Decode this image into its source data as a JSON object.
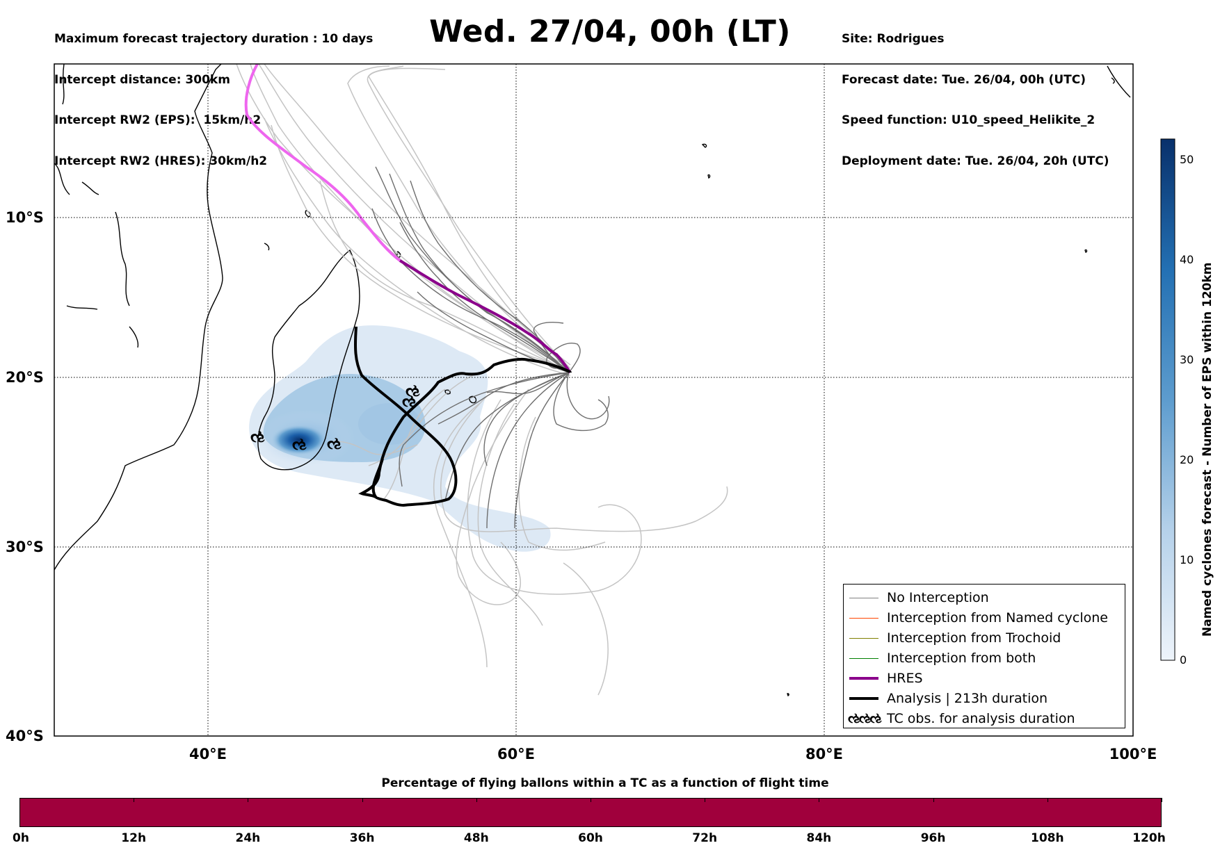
{
  "header_left": [
    "Maximum forecast trajectory duration : 10 days",
    "Intercept distance: 300km",
    "Intercept RW2 (EPS):  15km/h2",
    "Intercept RW2 (HRES): 30km/h2"
  ],
  "title": "Wed. 27/04, 00h (LT)",
  "header_right": [
    "Site: Rodrigues",
    "Forecast date: Tue. 26/04, 00h (UTC)",
    "Speed function: U10_speed_Helikite_2",
    "Deployment date: Tue. 26/04, 20h (UTC)"
  ],
  "map": {
    "lon_range": [
      30,
      100
    ],
    "lat_range": [
      -40,
      0
    ],
    "lon_ticks": [
      {
        "value": 40,
        "label": "40°E"
      },
      {
        "value": 60,
        "label": "60°E"
      },
      {
        "value": 80,
        "label": "80°E"
      },
      {
        "value": 100,
        "label": "100°E"
      }
    ],
    "lat_ticks": [
      {
        "value": -10,
        "label": "10°S"
      },
      {
        "value": -20,
        "label": "20°S"
      },
      {
        "value": -30,
        "label": "30°S"
      },
      {
        "value": -40,
        "label": "40°S"
      }
    ],
    "gridlines": "dotted",
    "hres_track": {
      "color": "#8b008b",
      "early_color": "#ee66ee"
    },
    "analysis_track": {
      "color": "#000000",
      "duration_h": 213
    }
  },
  "colorbar": {
    "title": "Named cyclones forecast - Number of EPS within 120km",
    "range": [
      0,
      52
    ],
    "ticks": [
      "0",
      "10",
      "20",
      "30",
      "40",
      "50"
    ],
    "colors": [
      "#e8f0f8",
      "#08306b"
    ]
  },
  "legend": {
    "items": [
      {
        "label": "No Interception",
        "color": "#808080",
        "width": 1.5
      },
      {
        "label": "Interception from Named cyclone",
        "color": "#ff4500",
        "width": 1.5
      },
      {
        "label": "Interception from Trochoid",
        "color": "#808000",
        "width": 1.5
      },
      {
        "label": "Interception from both",
        "color": "#008000",
        "width": 1.5
      },
      {
        "label": "HRES",
        "color": "#8b008b",
        "width": 4
      },
      {
        "label": "Analysis | 213h duration",
        "color": "#000000",
        "width": 4
      }
    ],
    "tc_obs_label": "TC obs. for analysis duration",
    "tc_obs_symbol": "ઌઌઌ"
  },
  "bottom": {
    "title": "Percentage of flying ballons within a TC as a function of flight time",
    "bar_color": "#a0003c",
    "ticks": [
      "0h",
      "12h",
      "24h",
      "36h",
      "48h",
      "60h",
      "72h",
      "84h",
      "96h",
      "108h",
      "120h"
    ]
  }
}
